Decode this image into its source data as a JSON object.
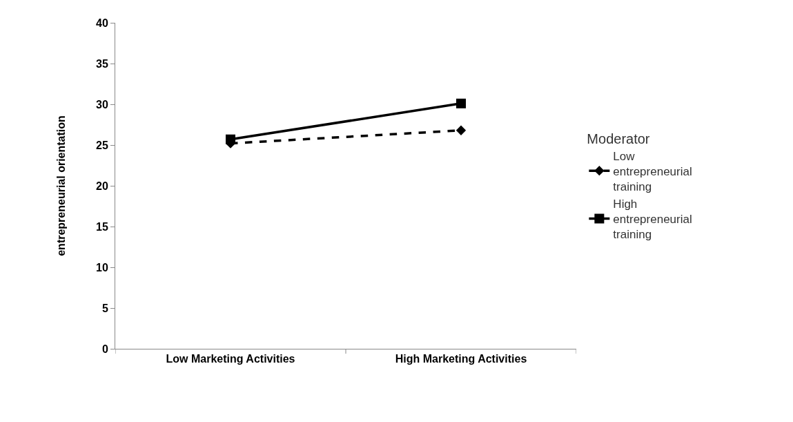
{
  "chart_data": {
    "type": "line",
    "ylabel": "entrepreneurial orientation",
    "legend_title": "Moderator",
    "categories": [
      "Low Marketing Activities",
      "High Marketing Activities"
    ],
    "series": [
      {
        "name": "Low entrepreneurial training",
        "color": "#000000",
        "values": [
          25.2,
          26.8
        ],
        "marker": "diamond",
        "line_style": "dashed"
      },
      {
        "name": "High entrepreneurial training",
        "color": "#000000",
        "values": [
          25.7,
          30.1
        ],
        "marker": "square",
        "line_style": "solid"
      }
    ],
    "ylim": [
      0,
      40
    ],
    "yticks": [
      0,
      5,
      10,
      15,
      20,
      25,
      30,
      35,
      40
    ],
    "legend": "right"
  }
}
